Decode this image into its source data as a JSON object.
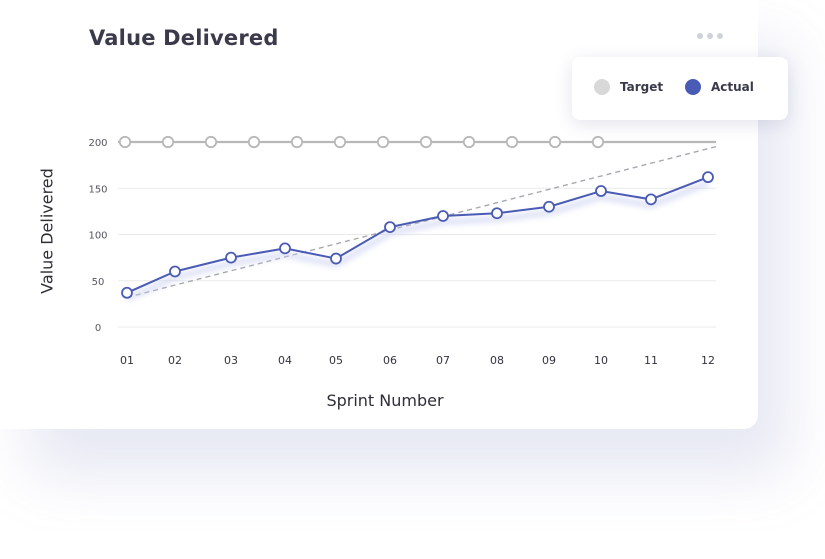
{
  "colors": {
    "target": "#b8b8b8",
    "target_legend": "#d8d8d8",
    "actual": "#4a5bb5",
    "trend": "#a8a8b0",
    "grid": "#eaeaea"
  },
  "header": {
    "title": "Value Delivered",
    "menu_icon": "more-horizontal-icon"
  },
  "chart_data": {
    "type": "line",
    "title": "Value Delivered",
    "xlabel": "Sprint Number",
    "ylabel": "Value Delivered",
    "categories": [
      "01",
      "02",
      "03",
      "04",
      "05",
      "06",
      "07",
      "08",
      "09",
      "10",
      "11",
      "12"
    ],
    "yticks": [
      0,
      50,
      100,
      150,
      200
    ],
    "ylim": [
      0,
      200
    ],
    "grid": true,
    "legend_position": "top-right",
    "series": [
      {
        "name": "Target",
        "values": [
          200,
          200,
          200,
          200,
          200,
          200,
          200,
          200,
          200,
          200,
          200,
          200
        ]
      },
      {
        "name": "Actual",
        "values": [
          37,
          60,
          75,
          85,
          74,
          108,
          120,
          123,
          130,
          147,
          138,
          162
        ]
      }
    ],
    "trendline": {
      "start": 32,
      "end": 195
    }
  }
}
